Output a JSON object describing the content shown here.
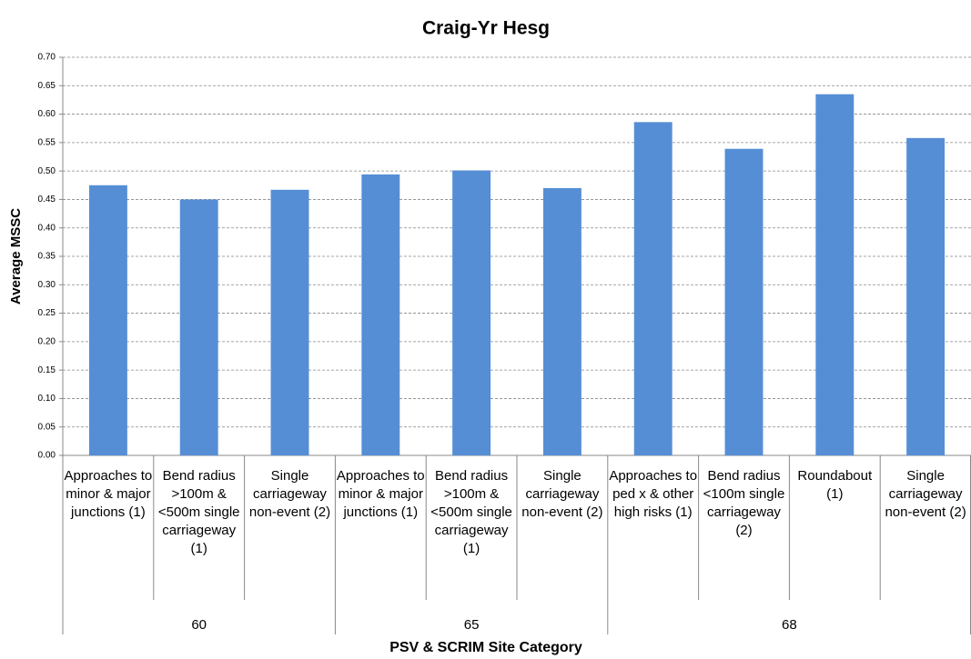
{
  "chart_data": {
    "type": "bar",
    "title": "Craig-Yr Hesg",
    "x_label": "PSV & SCRIM Site Category",
    "y_label": "Average MSSC",
    "color": "#558ed5",
    "grid": true,
    "ylim": [
      0,
      0.7
    ],
    "yticks": [
      {
        "value": 0,
        "label": "0.00"
      },
      {
        "value": 0.05,
        "label": "0.05"
      },
      {
        "value": 0.1,
        "label": "0.10"
      },
      {
        "value": 0.15,
        "label": "0.15"
      },
      {
        "value": 0.2,
        "label": "0.20"
      },
      {
        "value": 0.25,
        "label": "0.25"
      },
      {
        "value": 0.3,
        "label": "0.30"
      },
      {
        "value": 0.35,
        "label": "0.35"
      },
      {
        "value": 0.4,
        "label": "0.40"
      },
      {
        "value": 0.45,
        "label": "0.45"
      },
      {
        "value": 0.5,
        "label": "0.50"
      },
      {
        "value": 0.55,
        "label": "0.55"
      },
      {
        "value": 0.6,
        "label": "0.60"
      },
      {
        "value": 0.65,
        "label": "0.65"
      },
      {
        "value": 0.7,
        "label": "0.70"
      }
    ],
    "groups": [
      {
        "name": "60",
        "categories": [
          "Approaches to minor & major junctions (1)",
          "Bend radius >100m & <500m single carriageway (1)",
          "Single carriageway non-event (2)"
        ],
        "values": [
          0.475,
          0.45,
          0.467
        ]
      },
      {
        "name": "65",
        "categories": [
          "Approaches to minor & major junctions (1)",
          "Bend radius >100m & <500m single carriageway (1)",
          "Single carriageway non-event (2)"
        ],
        "values": [
          0.494,
          0.501,
          0.47
        ]
      },
      {
        "name": "68",
        "categories": [
          "Approaches to ped x & other high risks (1)",
          "Bend radius <100m single carriageway (2)",
          "Roundabout (1)",
          "Single carriageway non-event (2)"
        ],
        "values": [
          0.586,
          0.539,
          0.635,
          0.558
        ]
      }
    ]
  }
}
